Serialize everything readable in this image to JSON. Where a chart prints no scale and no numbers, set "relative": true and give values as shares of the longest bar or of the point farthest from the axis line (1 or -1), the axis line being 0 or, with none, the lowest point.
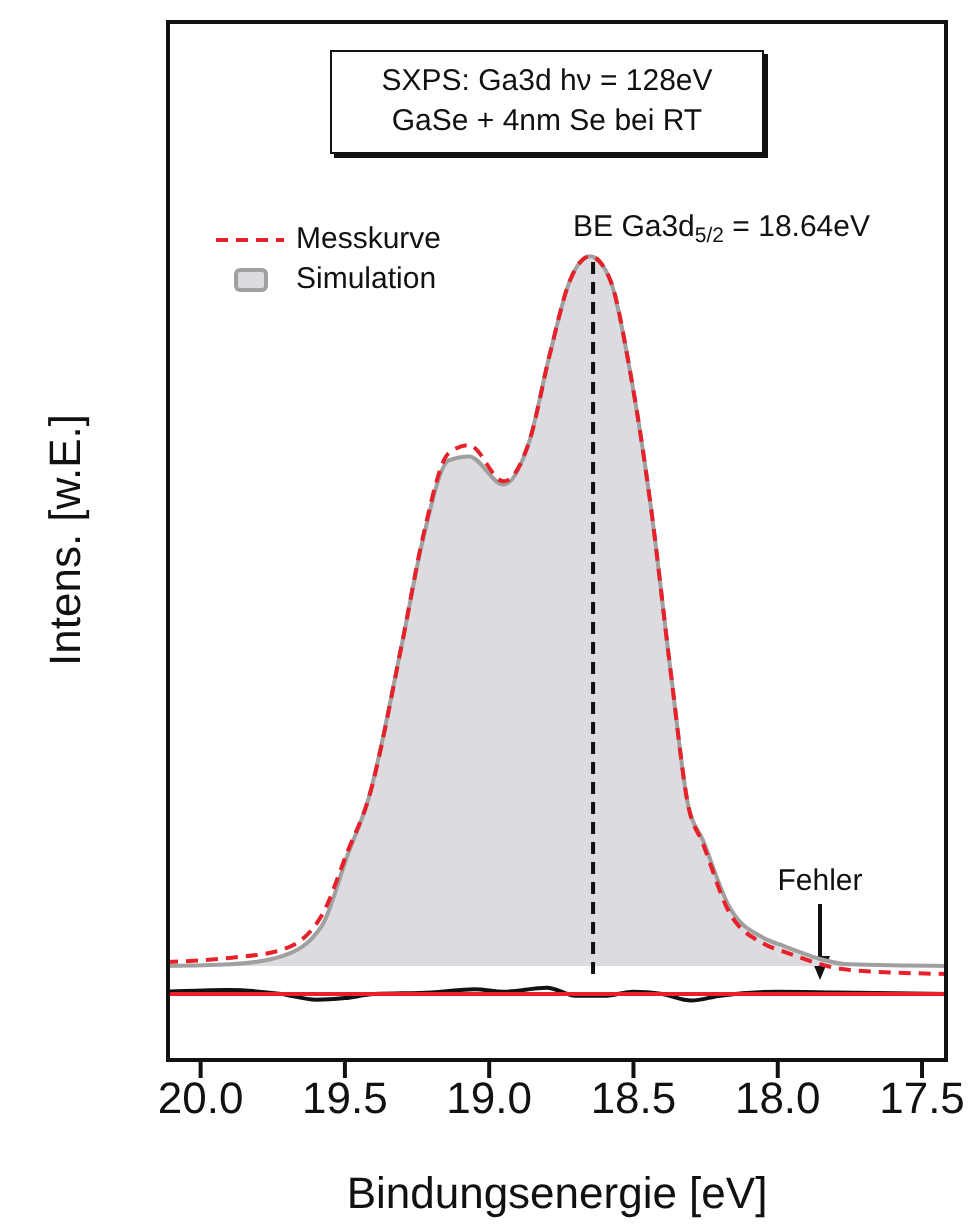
{
  "chart_data": {
    "type": "line",
    "title": "SXPS: Ga3d hν = 128eV",
    "subtitle": "GaSe + 4nm Se bei RT",
    "xlabel": "Bindungsenergie [eV]",
    "ylabel": "Intens. [w.E.]",
    "relative": true,
    "x": [
      20.12,
      19.9,
      19.72,
      19.58,
      19.49,
      19.42,
      19.3,
      19.23,
      19.14,
      19.07,
      18.95,
      18.86,
      18.79,
      18.72,
      18.65,
      18.58,
      18.51,
      18.44,
      18.37,
      18.31,
      18.26,
      18.17,
      18.05,
      17.98,
      17.75,
      17.41
    ],
    "series": [
      {
        "name": "Messkurve",
        "line_style": "dashed",
        "color": "#e8202a",
        "values": [
          0.122,
          0.127,
          0.137,
          0.18,
          0.26,
          0.323,
          0.522,
          0.65,
          0.755,
          0.765,
          0.72,
          0.771,
          0.878,
          0.97,
          1,
          0.97,
          0.853,
          0.689,
          0.48,
          0.316,
          0.27,
          0.185,
          0.145,
          0.135,
          0.112,
          0.107
        ]
      },
      {
        "name": "Simulation",
        "type": "area",
        "color": "#a0a0a0",
        "values": [
          0.117,
          0.119,
          0.129,
          0.167,
          0.256,
          0.323,
          0.522,
          0.647,
          0.746,
          0.751,
          0.716,
          0.771,
          0.878,
          0.97,
          1,
          0.97,
          0.853,
          0.689,
          0.48,
          0.316,
          0.274,
          0.192,
          0.152,
          0.142,
          0.119,
          0.117
        ]
      },
      {
        "color": "#111111",
        "x": [
          20.12,
          19.9,
          19.72,
          19.6,
          19.5,
          19.4,
          19.2,
          19.05,
          18.95,
          18.8,
          18.7,
          18.6,
          18.5,
          18.4,
          18.3,
          18.2,
          18.0,
          17.8,
          17.41
        ],
        "values": [
          0.085,
          0.087,
          0.082,
          0.075,
          0.077,
          0.082,
          0.084,
          0.088,
          0.085,
          0.09,
          0.08,
          0.08,
          0.085,
          0.082,
          0.074,
          0.08,
          0.085,
          0.084,
          0.082
        ]
      }
    ],
    "xlim": [
      20.12,
      17.41
    ],
    "xticks": [
      {
        "value": 20,
        "label": "20.0"
      },
      {
        "value": 19.5,
        "label": "19.5"
      },
      {
        "value": 19,
        "label": "19.0"
      },
      {
        "value": 18.5,
        "label": "18.5"
      },
      {
        "value": 18,
        "label": "18.0"
      },
      {
        "value": 17.5,
        "label": "17.5"
      }
    ],
    "ref_lines": [
      {
        "axis": "x",
        "value": 18.64,
        "label": "BE Ga3d$_{5/2}$ = 18.64eV",
        "color": "#111111",
        "line_style": "dashed"
      },
      {
        "axis": "y",
        "value": 0.082,
        "color": "#e8202a"
      }
    ],
    "annotations": [
      "Fehler"
    ],
    "legend": "top left",
    "marker": "none"
  }
}
